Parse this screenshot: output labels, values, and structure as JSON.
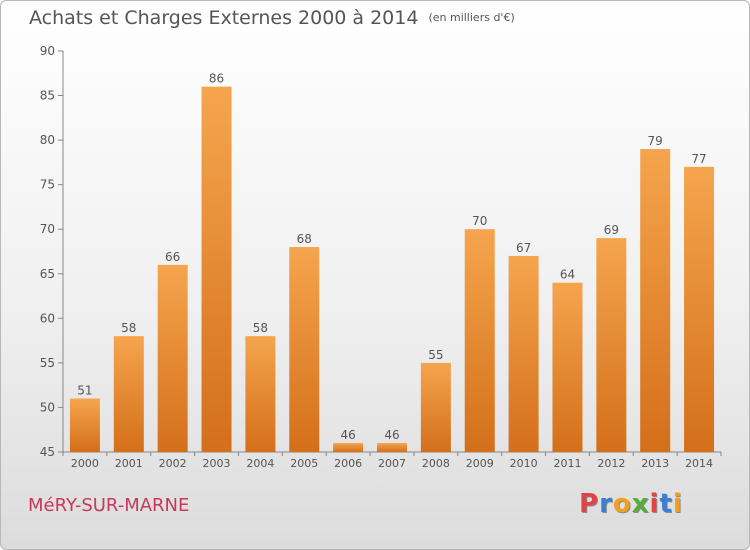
{
  "header": {
    "title": "Achats et Charges Externes 2000 à 2014",
    "unit": "(en milliers d'€)"
  },
  "footer": {
    "city": "MéRY-SUR-MARNE",
    "logo": "Proxiti"
  },
  "colors": {
    "bar_light": "#f5a54e",
    "bar_dark": "#d46f1a",
    "text": "#555555",
    "axis": "#888888",
    "city": "#c8385e",
    "logo": [
      "#e04545",
      "#3b7fd4",
      "#f0a020",
      "#56ad3c",
      "#e04545",
      "#3b7fd4",
      "#f0a020"
    ]
  },
  "chart_data": {
    "type": "bar",
    "title": "Achats et Charges Externes 2000 à 2014",
    "xlabel": "",
    "ylabel": "",
    "ylim": [
      45,
      90
    ],
    "yticks": [
      45,
      50,
      55,
      60,
      65,
      70,
      75,
      80,
      85,
      90
    ],
    "grid": false,
    "categories": [
      "2000",
      "2001",
      "2002",
      "2003",
      "2004",
      "2005",
      "2006",
      "2007",
      "2008",
      "2009",
      "2010",
      "2011",
      "2012",
      "2013",
      "2014"
    ],
    "values": [
      51,
      58,
      66,
      86,
      58,
      68,
      46,
      46,
      55,
      70,
      67,
      64,
      69,
      79,
      77
    ]
  }
}
